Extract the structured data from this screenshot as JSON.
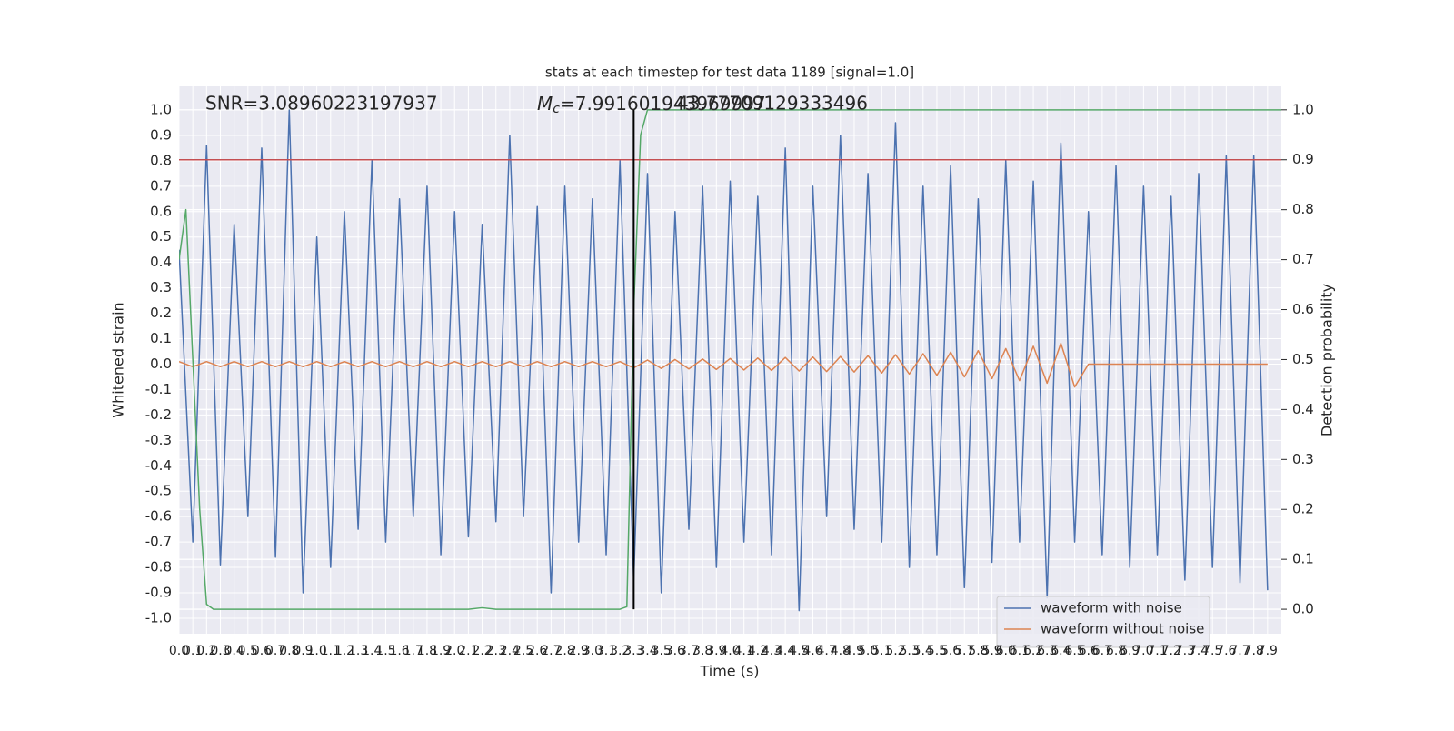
{
  "chart_data": {
    "type": "line",
    "title": "stats at each timestep for test data 1189 [signal=1.0]",
    "x_label": "Time (s)",
    "y_label": "Whitened strain",
    "y2_label": "Detection probability",
    "annotations": [
      {
        "text": "SNR=3.08960223197937"
      },
      {
        "symbol": "M",
        "subscript": "c",
        "text": "=7.991601943969997"
      },
      {
        "text": "43.77709129333496"
      }
    ],
    "xlim": [
      0,
      8
    ],
    "ylim": [
      -1.061,
      1.093
    ],
    "y2lim": [
      -0.049,
      1.047
    ],
    "grid": true,
    "legend": "lower right",
    "xticks": [
      {
        "value": 0,
        "label": "0.0"
      },
      0.1,
      0.2,
      0.3,
      0.4,
      0.5,
      0.6,
      0.7,
      0.8,
      0.9,
      {
        "value": 1,
        "label": "1.0"
      },
      1.1,
      1.2,
      1.3,
      1.4,
      1.5,
      1.6,
      1.7,
      1.8,
      1.9,
      {
        "value": 2,
        "label": "2.0"
      },
      2.1,
      2.2,
      2.3,
      2.4,
      2.5,
      2.6,
      2.7,
      2.8,
      2.9,
      {
        "value": 3,
        "label": "3.0"
      },
      3.1,
      3.2,
      3.3,
      3.4,
      3.5,
      3.6,
      3.7,
      3.8,
      3.9,
      {
        "value": 4,
        "label": "4.0"
      },
      4.1,
      4.2,
      4.3,
      4.4,
      4.5,
      4.6,
      4.7,
      4.8,
      4.9,
      {
        "value": 5,
        "label": "5.0"
      },
      5.1,
      5.2,
      5.3,
      5.4,
      5.5,
      5.6,
      5.7,
      5.8,
      5.9,
      {
        "value": 6,
        "label": "6.0"
      },
      6.1,
      6.2,
      6.3,
      6.4,
      6.5,
      6.6,
      6.7,
      6.8,
      6.9,
      {
        "value": 7,
        "label": "7.0"
      },
      7.1,
      7.2,
      7.3,
      7.4,
      7.5,
      7.6,
      7.7,
      7.8,
      7.9
    ],
    "yticks": [
      {
        "value": -1,
        "label": "-1.0"
      },
      -0.9,
      -0.8,
      -0.7,
      -0.6,
      -0.5,
      -0.4,
      -0.3,
      -0.2,
      -0.1,
      {
        "value": 0,
        "label": "0.0"
      },
      0.1,
      0.2,
      0.3,
      0.4,
      0.5,
      0.6,
      0.7,
      0.8,
      0.9,
      {
        "value": 1,
        "label": "1.0"
      }
    ],
    "y2ticks": [
      {
        "value": 0,
        "label": "0.0"
      },
      0.1,
      0.2,
      0.3,
      0.4,
      0.5,
      0.6,
      0.7,
      0.8,
      0.9,
      {
        "value": 1,
        "label": "1.0"
      }
    ],
    "series": [
      {
        "name": "waveform with noise",
        "color": "#4c72b0",
        "axis": "y",
        "x": [
          0,
          0.1,
          0.2,
          0.3,
          0.4,
          0.5,
          0.6,
          0.7,
          0.8,
          0.9,
          1,
          1.1,
          1.2,
          1.3,
          1.4,
          1.5,
          1.6,
          1.7,
          1.8,
          1.9,
          2,
          2.1,
          2.2,
          2.3,
          2.4,
          2.5,
          2.6,
          2.7,
          2.8,
          2.9,
          3,
          3.1,
          3.2,
          3.3,
          3.4,
          3.5,
          3.6,
          3.7,
          3.8,
          3.9,
          4,
          4.1,
          4.2,
          4.3,
          4.4,
          4.5,
          4.6,
          4.7,
          4.8,
          4.9,
          5,
          5.1,
          5.2,
          5.3,
          5.4,
          5.5,
          5.6,
          5.7,
          5.8,
          5.9,
          6,
          6.1,
          6.2,
          6.3,
          6.4,
          6.5,
          6.6,
          6.7,
          6.8,
          6.9,
          7,
          7.1,
          7.2,
          7.3,
          7.4,
          7.5,
          7.6,
          7.7,
          7.8,
          7.9
        ],
        "values": [
          0.45,
          -0.7,
          0.86,
          -0.79,
          0.55,
          -0.6,
          0.85,
          -0.76,
          1.0,
          -0.9,
          0.5,
          -0.8,
          0.6,
          -0.65,
          0.8,
          -0.7,
          0.65,
          -0.6,
          0.7,
          -0.75,
          0.6,
          -0.68,
          0.55,
          -0.62,
          0.9,
          -0.6,
          0.62,
          -0.9,
          0.7,
          -0.7,
          0.65,
          -0.75,
          0.8,
          -0.85,
          0.75,
          -0.9,
          0.6,
          -0.65,
          0.7,
          -0.8,
          0.72,
          -0.7,
          0.66,
          -0.75,
          0.85,
          -0.97,
          0.7,
          -0.6,
          0.9,
          -0.65,
          0.75,
          -0.7,
          0.95,
          -0.8,
          0.7,
          -0.75,
          0.78,
          -0.88,
          0.65,
          -0.78,
          0.8,
          -0.7,
          0.72,
          -0.92,
          0.87,
          -0.7,
          0.6,
          -0.75,
          0.78,
          -0.8,
          0.7,
          -0.75,
          0.66,
          -0.85,
          0.75,
          -0.8,
          0.82,
          -0.86,
          0.82,
          -0.89
        ]
      },
      {
        "name": "waveform without noise",
        "color": "#dd8452",
        "axis": "y",
        "x": [
          0,
          0.1,
          0.2,
          0.3,
          0.4,
          0.5,
          0.6,
          0.7,
          0.8,
          0.9,
          1,
          1.1,
          1.2,
          1.3,
          1.4,
          1.5,
          1.6,
          1.7,
          1.8,
          1.9,
          2,
          2.1,
          2.2,
          2.3,
          2.4,
          2.5,
          2.6,
          2.7,
          2.8,
          2.9,
          3,
          3.1,
          3.2,
          3.3,
          3.4,
          3.5,
          3.6,
          3.7,
          3.8,
          3.9,
          4,
          4.1,
          4.2,
          4.3,
          4.4,
          4.5,
          4.6,
          4.7,
          4.8,
          4.9,
          5,
          5.1,
          5.2,
          5.3,
          5.4,
          5.5,
          5.6,
          5.7,
          5.8,
          5.9,
          6,
          6.1,
          6.2,
          6.3,
          6.4,
          6.5,
          6.6,
          6.7,
          6.8,
          6.9,
          7,
          7.1,
          7.2,
          7.3,
          7.4,
          7.5,
          7.6,
          7.7,
          7.8,
          7.9
        ],
        "values": [
          0.01,
          -0.01,
          0.01,
          -0.01,
          0.01,
          -0.01,
          0.01,
          -0.01,
          0.01,
          -0.01,
          0.01,
          -0.01,
          0.01,
          -0.01,
          0.01,
          -0.01,
          0.01,
          -0.01,
          0.01,
          -0.01,
          0.01,
          -0.01,
          0.01,
          -0.01,
          0.01,
          -0.01,
          0.01,
          -0.01,
          0.01,
          -0.01,
          0.01,
          -0.01,
          0.01,
          -0.015,
          0.016,
          -0.017,
          0.018,
          -0.019,
          0.02,
          -0.021,
          0.022,
          -0.023,
          0.024,
          -0.025,
          0.026,
          -0.027,
          0.028,
          -0.029,
          0.03,
          -0.031,
          0.033,
          -0.035,
          0.037,
          -0.039,
          0.041,
          -0.044,
          0.047,
          -0.05,
          0.053,
          -0.057,
          0.061,
          -0.065,
          0.07,
          -0.075,
          0.082,
          -0.09,
          0,
          0,
          0,
          0,
          0,
          0,
          0,
          0,
          0,
          0,
          0,
          0,
          0,
          0
        ]
      },
      {
        "color": "#55a868",
        "axis": "y2",
        "x": [
          0,
          0.05,
          0.1,
          0.15,
          0.2,
          0.25,
          0.3,
          2.1,
          2.2,
          2.3,
          3.2,
          3.25,
          3.3,
          3.35,
          3.4,
          8
        ],
        "values": [
          0.7,
          0.8,
          0.5,
          0.2,
          0.01,
          0,
          0,
          0,
          0.003,
          0,
          0,
          0.005,
          0.6,
          0.95,
          1,
          1
        ]
      }
    ],
    "hlines": [
      {
        "value": 0.9,
        "axis": "y2",
        "color": "#c44e52"
      }
    ],
    "vlines": [
      {
        "value": 3.3,
        "axis": "y2",
        "ymin": 0,
        "ymax": 1,
        "color": "#000000"
      }
    ]
  }
}
